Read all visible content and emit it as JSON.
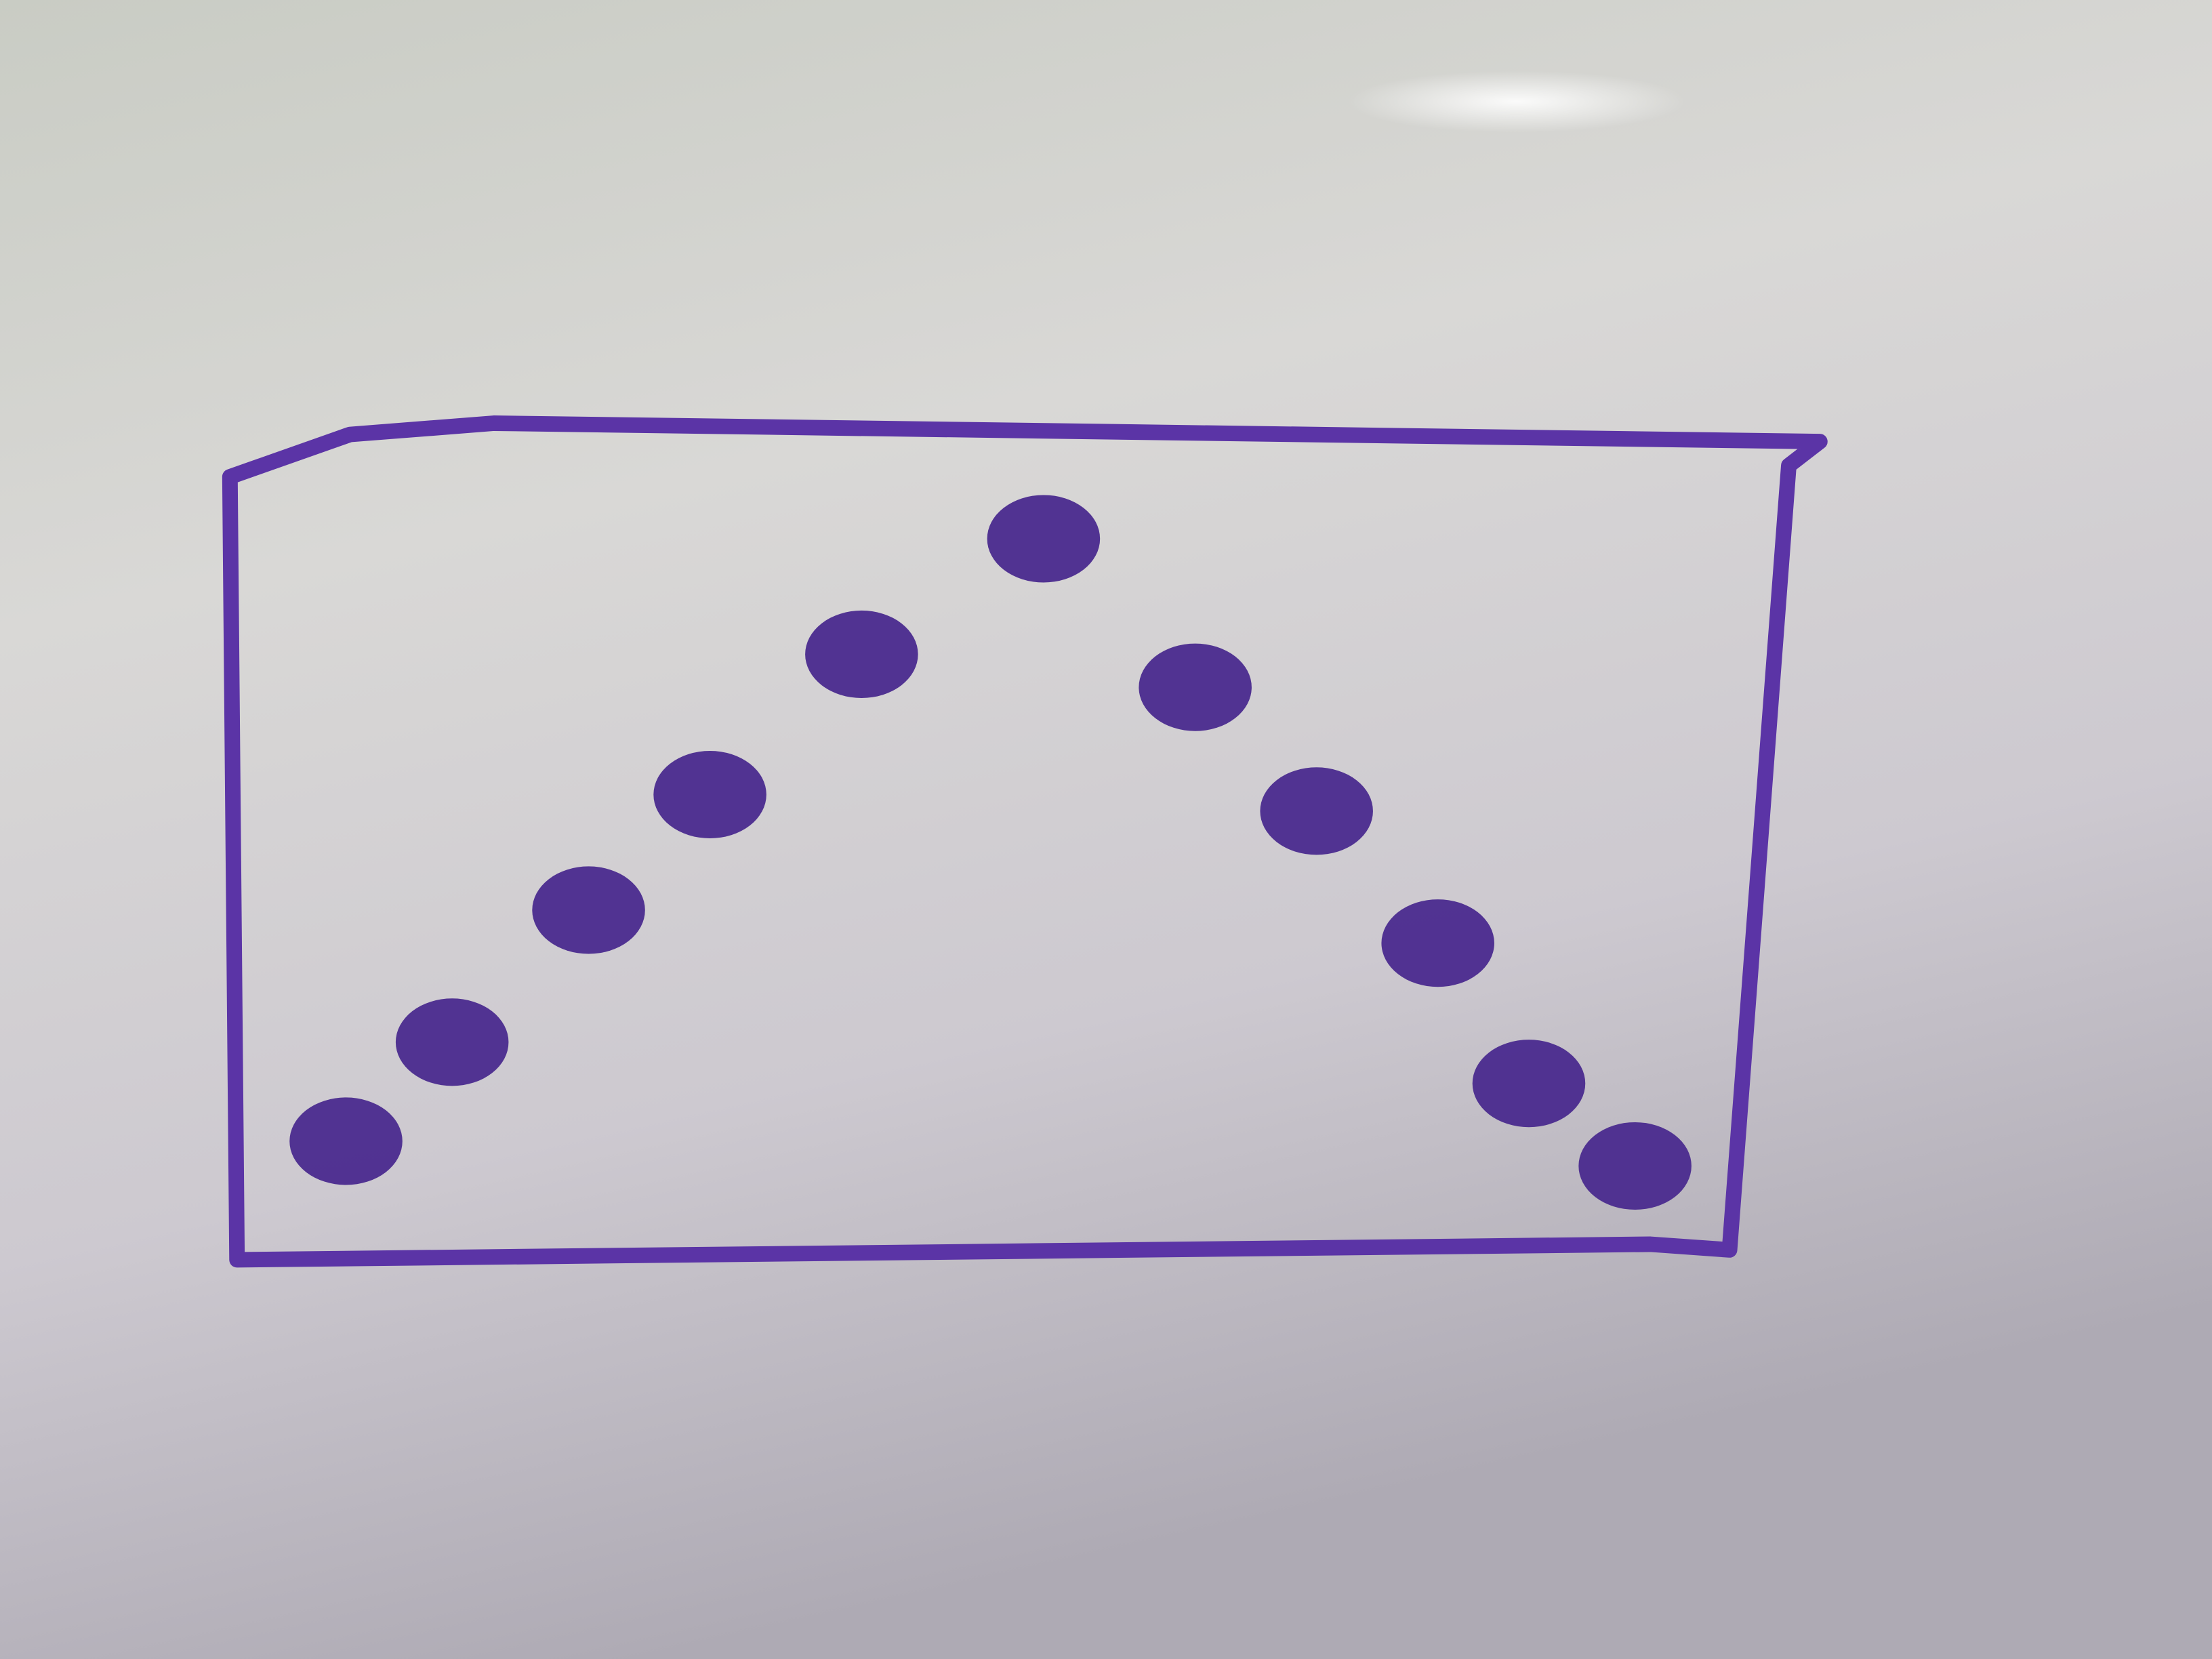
{
  "chart_data": {
    "type": "scatter",
    "x": [
      0.07,
      0.14,
      0.23,
      0.31,
      0.41,
      0.53,
      0.63,
      0.71,
      0.79,
      0.85,
      0.92
    ],
    "values": [
      0.13,
      0.25,
      0.41,
      0.55,
      0.72,
      0.86,
      0.68,
      0.53,
      0.37,
      0.2,
      0.1
    ],
    "xlim": [
      0,
      1
    ],
    "ylim": [
      0,
      1
    ],
    "color": "#4a2a8e"
  }
}
